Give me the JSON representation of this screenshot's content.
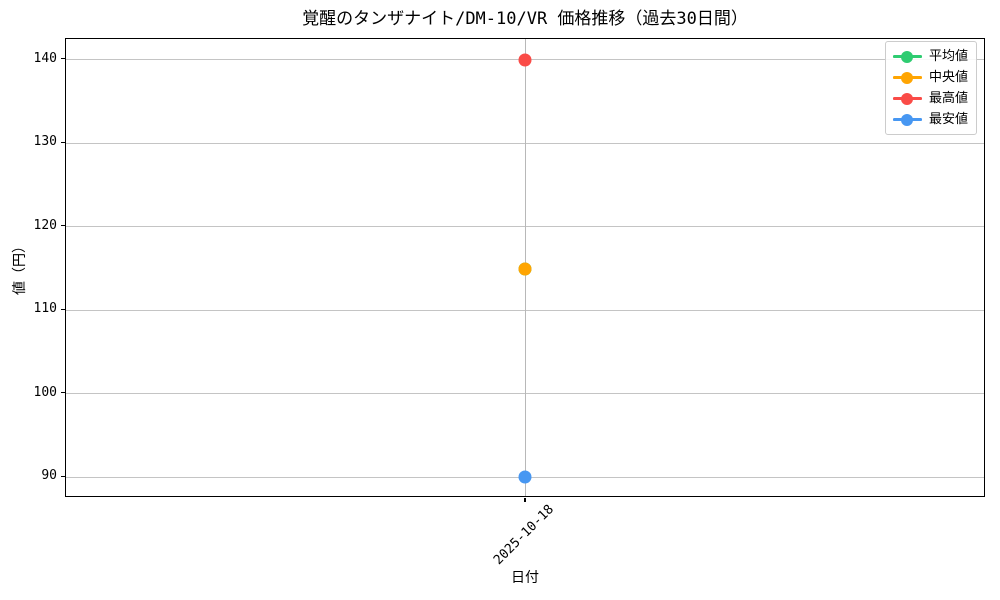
{
  "figure": {
    "background": "#ffffff"
  },
  "chart_data": {
    "type": "line",
    "title": "覚醒のタンザナイト/DM-10/VR 価格推移（過去30日間）",
    "xlabel": "日付",
    "ylabel": "値（円）",
    "x": [
      "2025-10-18"
    ],
    "series": [
      {
        "name": "平均値",
        "color": "#2ecc71",
        "values": [
          115
        ]
      },
      {
        "name": "中央値",
        "color": "#ffa502",
        "values": [
          115
        ]
      },
      {
        "name": "最高値",
        "color": "#fa4b47",
        "values": [
          140
        ]
      },
      {
        "name": "最安値",
        "color": "#4797f2",
        "values": [
          90
        ]
      }
    ],
    "ylim": [
      87.5,
      142.5
    ],
    "yticks": [
      90,
      100,
      110,
      120,
      130,
      140
    ],
    "grid": true,
    "legend_position": "upper right",
    "colors": {
      "grid": "#c4c4c4",
      "vgrid": "#b8b8b8",
      "spine": "#000000",
      "legend_border": "#cccccc"
    },
    "notes": "平均値(115)は中央値(115)と同値のためマーカーが重なって非表示"
  }
}
